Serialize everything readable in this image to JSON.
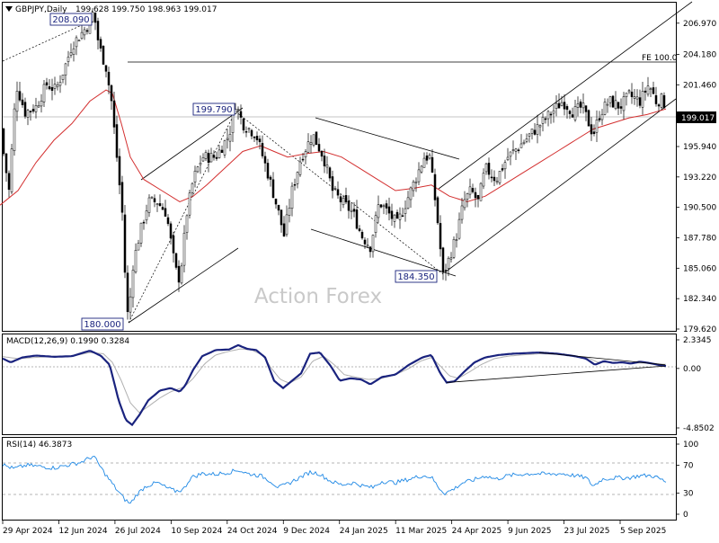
{
  "chart_data": [
    {
      "type": "candlestick",
      "panel": "price",
      "symbol_label": "GBPJPY,Daily",
      "ohlc_label": "199.628 199.750 198.963 199.017",
      "watermark": "Action Forex",
      "current_price": "199.017",
      "y_ticks": [
        "206.970",
        "204.180",
        "201.460",
        "198.740",
        "195.940",
        "193.220",
        "190.500",
        "187.780",
        "185.060",
        "182.340",
        "179.620"
      ],
      "x_ticks": [
        "29 Apr 2024",
        "12 Jun 2024",
        "26 Jul 2024",
        "10 Sep 2024",
        "24 Oct 2024",
        "9 Dec 2024",
        "24 Jan 2025",
        "11 Mar 2025",
        "24 Apr 2025",
        "9 Jun 2025",
        "23 Jul 2025",
        "5 Sep 2025"
      ],
      "ylim": [
        179.62,
        208.4
      ],
      "annotations": {
        "high_2024": "208.090",
        "low_2024": "180.000",
        "swing_high": "199.790",
        "swing_low": "184.350",
        "fe_label": "FE 100.0",
        "fe_level": 204.24
      },
      "anchor_points": [
        [
          0,
          197.5
        ],
        [
          10,
          192
        ],
        [
          18,
          201.5
        ],
        [
          28,
          199
        ],
        [
          40,
          199.5
        ],
        [
          52,
          201.5
        ],
        [
          62,
          201
        ],
        [
          72,
          203
        ],
        [
          80,
          205
        ],
        [
          90,
          206
        ],
        [
          100,
          207
        ],
        [
          104,
          208.09
        ],
        [
          110,
          205
        ],
        [
          118,
          203
        ],
        [
          124,
          200
        ],
        [
          130,
          195
        ],
        [
          136,
          190
        ],
        [
          140,
          183
        ],
        [
          143,
          180
        ],
        [
          147,
          185
        ],
        [
          155,
          188
        ],
        [
          165,
          191
        ],
        [
          175,
          191
        ],
        [
          185,
          190
        ],
        [
          195,
          185
        ],
        [
          200,
          184
        ],
        [
          208,
          190
        ],
        [
          215,
          193
        ],
        [
          225,
          195
        ],
        [
          240,
          195
        ],
        [
          255,
          197
        ],
        [
          262,
          199.79
        ],
        [
          270,
          198
        ],
        [
          285,
          197
        ],
        [
          300,
          193
        ],
        [
          310,
          190
        ],
        [
          316,
          188
        ],
        [
          325,
          192
        ],
        [
          335,
          195
        ],
        [
          348,
          197
        ],
        [
          360,
          195
        ],
        [
          370,
          192
        ],
        [
          380,
          191
        ],
        [
          393,
          190
        ],
        [
          402,
          188
        ],
        [
          412,
          187
        ],
        [
          422,
          191
        ],
        [
          432,
          190
        ],
        [
          442,
          189
        ],
        [
          452,
          191
        ],
        [
          462,
          193
        ],
        [
          472,
          195
        ],
        [
          478,
          195
        ],
        [
          486,
          190
        ],
        [
          493,
          184.35
        ],
        [
          500,
          186
        ],
        [
          508,
          188
        ],
        [
          516,
          191
        ],
        [
          524,
          192
        ],
        [
          532,
          191
        ],
        [
          540,
          194
        ],
        [
          552,
          193
        ],
        [
          565,
          195
        ],
        [
          578,
          196
        ],
        [
          590,
          197
        ],
        [
          602,
          198
        ],
        [
          614,
          199
        ],
        [
          626,
          200
        ],
        [
          638,
          199
        ],
        [
          648,
          199.5
        ],
        [
          660,
          197
        ],
        [
          668,
          199
        ],
        [
          678,
          200
        ],
        [
          690,
          199.5
        ],
        [
          700,
          200.5
        ],
        [
          712,
          200
        ],
        [
          722,
          201.5
        ],
        [
          730,
          200
        ],
        [
          738,
          200.2
        ],
        [
          741,
          199.02
        ]
      ],
      "moving_average": [
        [
          0,
          190.7
        ],
        [
          20,
          192
        ],
        [
          40,
          194.5
        ],
        [
          60,
          196.5
        ],
        [
          80,
          198
        ],
        [
          100,
          200
        ],
        [
          118,
          201
        ],
        [
          125,
          200.7
        ],
        [
          135,
          198
        ],
        [
          145,
          195
        ],
        [
          160,
          193
        ],
        [
          180,
          192
        ],
        [
          200,
          191
        ],
        [
          215,
          191.5
        ],
        [
          230,
          192.5
        ],
        [
          250,
          194
        ],
        [
          270,
          195.5
        ],
        [
          290,
          196
        ],
        [
          305,
          195.5
        ],
        [
          320,
          195
        ],
        [
          340,
          195.3
        ],
        [
          360,
          195.5
        ],
        [
          380,
          195
        ],
        [
          400,
          194
        ],
        [
          420,
          193
        ],
        [
          440,
          192
        ],
        [
          460,
          192.2
        ],
        [
          480,
          192.5
        ],
        [
          500,
          191.5
        ],
        [
          520,
          191
        ],
        [
          540,
          191.5
        ],
        [
          560,
          192.5
        ],
        [
          580,
          193.5
        ],
        [
          600,
          194.5
        ],
        [
          620,
          195.5
        ],
        [
          640,
          196.5
        ],
        [
          660,
          197.5
        ],
        [
          680,
          198
        ],
        [
          700,
          198.5
        ],
        [
          720,
          198.8
        ],
        [
          741,
          199.3
        ]
      ]
    },
    {
      "type": "line",
      "panel": "macd",
      "label": "MACD(12,26,9) 0.1990 0.3284",
      "y_ticks": [
        "2.3345",
        "0.00",
        "-4.8502"
      ],
      "ylim": [
        -4.8502,
        2.3345
      ],
      "macd_anchors": [
        [
          0,
          0.9
        ],
        [
          12,
          0.5
        ],
        [
          25,
          0.9
        ],
        [
          40,
          1.05
        ],
        [
          60,
          0.95
        ],
        [
          80,
          1.0
        ],
        [
          100,
          1.45
        ],
        [
          112,
          1.05
        ],
        [
          122,
          0.3
        ],
        [
          132,
          -2.6
        ],
        [
          140,
          -4.2
        ],
        [
          147,
          -4.6
        ],
        [
          155,
          -3.8
        ],
        [
          165,
          -2.6
        ],
        [
          178,
          -1.8
        ],
        [
          190,
          -1.6
        ],
        [
          200,
          -1.9
        ],
        [
          206,
          -1.4
        ],
        [
          215,
          -0.1
        ],
        [
          225,
          1.0
        ],
        [
          240,
          1.5
        ],
        [
          255,
          1.55
        ],
        [
          265,
          1.9
        ],
        [
          275,
          1.6
        ],
        [
          285,
          1.5
        ],
        [
          295,
          0.9
        ],
        [
          305,
          -1.0
        ],
        [
          315,
          -1.6
        ],
        [
          325,
          -1.0
        ],
        [
          335,
          -0.4
        ],
        [
          345,
          1.2
        ],
        [
          356,
          1.3
        ],
        [
          368,
          0.2
        ],
        [
          378,
          -1.0
        ],
        [
          390,
          -0.8
        ],
        [
          402,
          -0.9
        ],
        [
          412,
          -1.3
        ],
        [
          425,
          -0.7
        ],
        [
          440,
          -0.5
        ],
        [
          455,
          0.3
        ],
        [
          470,
          0.9
        ],
        [
          480,
          1.1
        ],
        [
          490,
          -0.4
        ],
        [
          497,
          -1.15
        ],
        [
          506,
          -1.05
        ],
        [
          516,
          -0.3
        ],
        [
          528,
          0.5
        ],
        [
          540,
          0.9
        ],
        [
          555,
          1.1
        ],
        [
          570,
          1.2
        ],
        [
          585,
          1.25
        ],
        [
          600,
          1.3
        ],
        [
          620,
          1.2
        ],
        [
          640,
          1.0
        ],
        [
          652,
          0.8
        ],
        [
          662,
          0.3
        ],
        [
          672,
          0.6
        ],
        [
          682,
          0.45
        ],
        [
          692,
          0.5
        ],
        [
          702,
          0.4
        ],
        [
          712,
          0.55
        ],
        [
          722,
          0.45
        ],
        [
          732,
          0.3
        ],
        [
          740,
          0.2
        ]
      ],
      "signal_anchors": [
        [
          0,
          1.0
        ],
        [
          20,
          0.8
        ],
        [
          40,
          0.9
        ],
        [
          60,
          1.0
        ],
        [
          80,
          1.0
        ],
        [
          100,
          1.3
        ],
        [
          115,
          1.2
        ],
        [
          125,
          0.5
        ],
        [
          135,
          -1.0
        ],
        [
          145,
          -2.8
        ],
        [
          155,
          -3.6
        ],
        [
          165,
          -3.1
        ],
        [
          178,
          -2.4
        ],
        [
          190,
          -1.9
        ],
        [
          205,
          -1.5
        ],
        [
          215,
          -0.8
        ],
        [
          228,
          0.4
        ],
        [
          240,
          1.1
        ],
        [
          255,
          1.4
        ],
        [
          268,
          1.6
        ],
        [
          280,
          1.5
        ],
        [
          292,
          1.1
        ],
        [
          302,
          0.0
        ],
        [
          312,
          -0.9
        ],
        [
          322,
          -1.2
        ],
        [
          335,
          -0.7
        ],
        [
          348,
          0.6
        ],
        [
          360,
          1.0
        ],
        [
          372,
          0.3
        ],
        [
          383,
          -0.5
        ],
        [
          395,
          -0.7
        ],
        [
          410,
          -0.9
        ],
        [
          425,
          -0.8
        ],
        [
          440,
          -0.5
        ],
        [
          455,
          0.0
        ],
        [
          468,
          0.6
        ],
        [
          480,
          0.9
        ],
        [
          490,
          0.2
        ],
        [
          500,
          -0.6
        ],
        [
          510,
          -0.8
        ],
        [
          522,
          -0.3
        ],
        [
          535,
          0.3
        ],
        [
          550,
          0.8
        ],
        [
          565,
          1.0
        ],
        [
          580,
          1.1
        ],
        [
          600,
          1.2
        ],
        [
          620,
          1.15
        ],
        [
          640,
          1.0
        ],
        [
          655,
          0.85
        ],
        [
          665,
          0.5
        ],
        [
          680,
          0.5
        ],
        [
          700,
          0.45
        ],
        [
          720,
          0.45
        ],
        [
          740,
          0.33
        ]
      ],
      "trend_lines": [
        [
          [
            497,
            -1.15
          ],
          [
            740,
            0.2
          ]
        ],
        [
          [
            600,
            1.3
          ],
          [
            740,
            0.3
          ]
        ]
      ]
    },
    {
      "type": "line",
      "panel": "rsi",
      "label": "RSI(14) 46.3873",
      "y_ticks": [
        "100",
        "70",
        "30",
        "0"
      ],
      "ylim": [
        0,
        100
      ],
      "rsi_anchors": [
        [
          0,
          72
        ],
        [
          15,
          65
        ],
        [
          30,
          70
        ],
        [
          45,
          68
        ],
        [
          60,
          66
        ],
        [
          75,
          70
        ],
        [
          90,
          74
        ],
        [
          104,
          83
        ],
        [
          112,
          67
        ],
        [
          120,
          52
        ],
        [
          130,
          35
        ],
        [
          138,
          22
        ],
        [
          145,
          15
        ],
        [
          152,
          28
        ],
        [
          162,
          40
        ],
        [
          175,
          45
        ],
        [
          185,
          38
        ],
        [
          195,
          33
        ],
        [
          204,
          35
        ],
        [
          212,
          52
        ],
        [
          225,
          58
        ],
        [
          240,
          57
        ],
        [
          255,
          60
        ],
        [
          265,
          63
        ],
        [
          275,
          58
        ],
        [
          290,
          55
        ],
        [
          300,
          48
        ],
        [
          310,
          38
        ],
        [
          318,
          42
        ],
        [
          330,
          50
        ],
        [
          345,
          60
        ],
        [
          355,
          58
        ],
        [
          368,
          47
        ],
        [
          380,
          42
        ],
        [
          393,
          45
        ],
        [
          405,
          40
        ],
        [
          415,
          38
        ],
        [
          425,
          47
        ],
        [
          440,
          45
        ],
        [
          455,
          50
        ],
        [
          470,
          55
        ],
        [
          480,
          53
        ],
        [
          488,
          38
        ],
        [
          495,
          30
        ],
        [
          505,
          36
        ],
        [
          515,
          45
        ],
        [
          525,
          48
        ],
        [
          540,
          55
        ],
        [
          552,
          50
        ],
        [
          565,
          55
        ],
        [
          580,
          57
        ],
        [
          595,
          58
        ],
        [
          610,
          57
        ],
        [
          625,
          58
        ],
        [
          640,
          55
        ],
        [
          652,
          52
        ],
        [
          660,
          40
        ],
        [
          670,
          50
        ],
        [
          685,
          52
        ],
        [
          700,
          52
        ],
        [
          712,
          55
        ],
        [
          725,
          55
        ],
        [
          732,
          52
        ],
        [
          741,
          46
        ]
      ]
    }
  ]
}
